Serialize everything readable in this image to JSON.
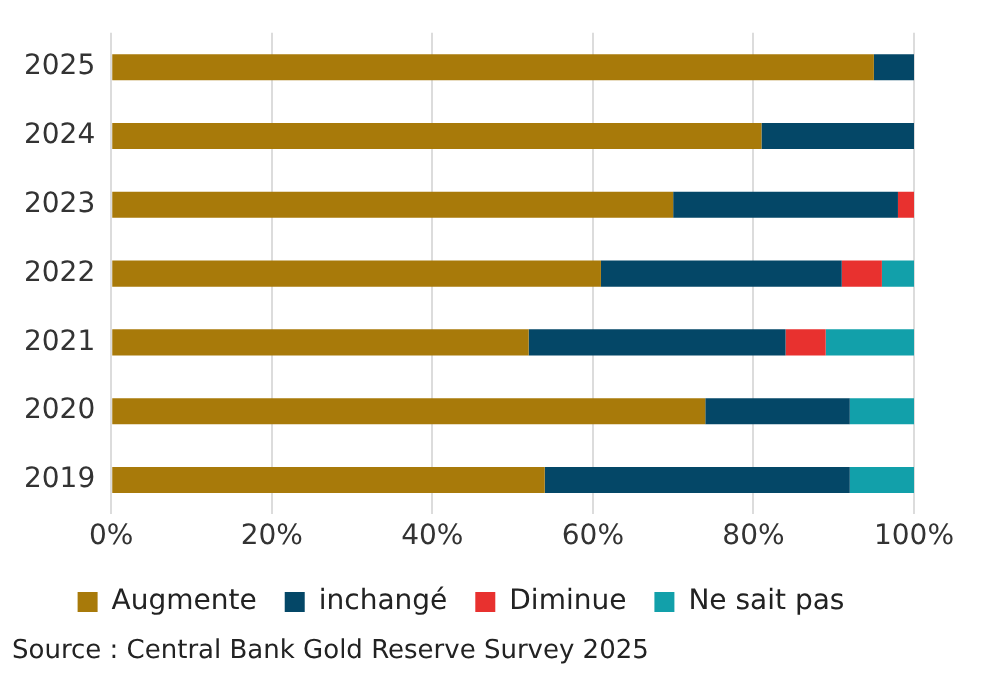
{
  "chart_data": {
    "type": "bar",
    "orientation": "horizontal",
    "stacked": true,
    "categories": [
      "2025",
      "2024",
      "2023",
      "2022",
      "2021",
      "2020",
      "2019"
    ],
    "series": [
      {
        "name": "Augmente",
        "color": "#a87a0a",
        "values": [
          95,
          81,
          70,
          61,
          52,
          74,
          54
        ]
      },
      {
        "name": "inchangé",
        "color": "#044767",
        "values": [
          5,
          19,
          28,
          30,
          32,
          18,
          38
        ]
      },
      {
        "name": "Diminue",
        "color": "#e8312f",
        "values": [
          0,
          0,
          2,
          5,
          5,
          0,
          0
        ]
      },
      {
        "name": "Ne sait pas",
        "color": "#12a0aa",
        "values": [
          0,
          0,
          0,
          4,
          11,
          8,
          8
        ]
      }
    ],
    "xlim": [
      0,
      100
    ],
    "xticks": [
      {
        "value": 0,
        "label": "0%"
      },
      {
        "value": 20,
        "label": "20%"
      },
      {
        "value": 40,
        "label": "40%"
      },
      {
        "value": 60,
        "label": "60%"
      },
      {
        "value": 80,
        "label": "80%"
      },
      {
        "value": 100,
        "label": "100%"
      }
    ],
    "grid": "x",
    "legend": "bottom",
    "annotations": [
      "Source : Central Bank Gold Reserve Survey 2025"
    ]
  }
}
